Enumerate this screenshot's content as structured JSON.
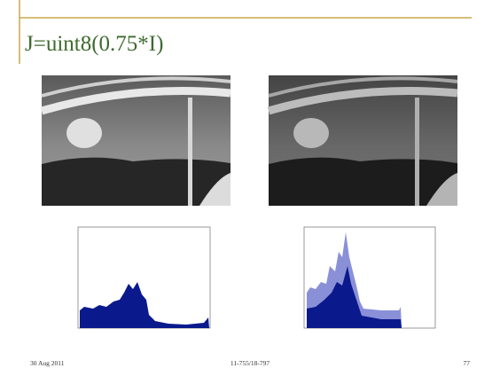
{
  "slide": {
    "title": "J=uint8(0.75*I)",
    "footer": {
      "date": "30 Aug 2011",
      "course": "11-755/18-797",
      "page": "77"
    }
  }
}
